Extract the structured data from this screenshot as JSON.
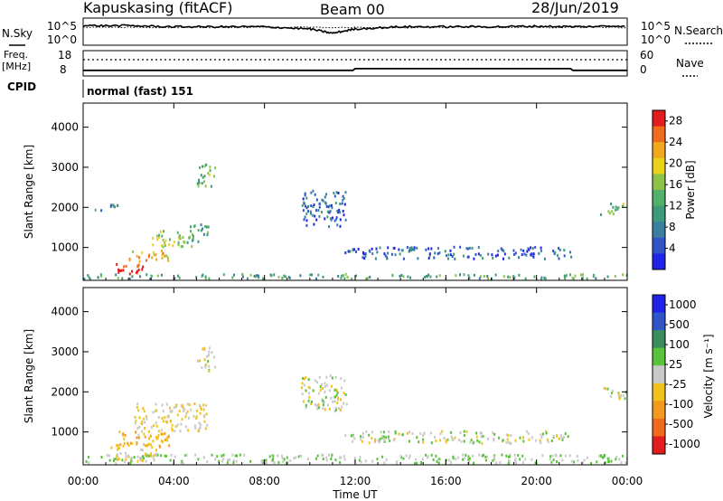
{
  "header": {
    "station": "Kapuskasing (fitACF)",
    "beam": "Beam 00",
    "date": "28/Jun/2019"
  },
  "strip_noise": {
    "left_label": "N.Sky",
    "left_ticks": [
      "10^5",
      "10^0"
    ],
    "right_ticks": [
      "10^5",
      "10^0"
    ],
    "right_label": "N.Search"
  },
  "strip_freq": {
    "left_label": "Freq.",
    "left_unit": "[MHz]",
    "left_ticks": [
      "18",
      "8"
    ],
    "right_ticks": [
      "60",
      "0"
    ],
    "right_label": "Nave"
  },
  "cpid": {
    "label": "CPID",
    "value": "normal (fast) 151"
  },
  "power_panel": {
    "ylabel": "Slant Range [km]",
    "yticks": [
      "1000",
      "2000",
      "3000",
      "4000"
    ],
    "colorbar_label": "Power [dB]",
    "colorbar_ticks": [
      "4",
      "8",
      "12",
      "16",
      "20",
      "24",
      "28"
    ],
    "colors": [
      "#1f24e6",
      "#2f55c8",
      "#3b7fa0",
      "#3e9a7a",
      "#52b06a",
      "#8ec34a",
      "#e8d21a",
      "#f2a81e",
      "#ef6c1c",
      "#e11d1d"
    ]
  },
  "velocity_panel": {
    "ylabel": "Slant Range [km]",
    "yticks": [
      "1000",
      "2000",
      "3000",
      "4000"
    ],
    "colorbar_label": "Velocity [m s⁻¹]",
    "colorbar_ticks": [
      "1000",
      "500",
      "100",
      "25",
      "-25",
      "-100",
      "-500",
      "-1000"
    ],
    "colors": [
      "#1f24e6",
      "#2f55c8",
      "#3a8d5e",
      "#58c23a",
      "#c9c9c9",
      "#f2c21b",
      "#f29a1e",
      "#ef6a1c",
      "#e11d1d"
    ]
  },
  "xaxis": {
    "ticks": [
      "00:00",
      "04:00",
      "08:00",
      "12:00",
      "16:00",
      "20:00",
      "00:00"
    ],
    "label": "Time UT"
  },
  "chart_data": [
    {
      "type": "heatmap",
      "title": "Power",
      "xlabel": "Time UT",
      "ylabel": "Slant Range [km]",
      "xlim": [
        0,
        24
      ],
      "ylim": [
        180,
        4600
      ],
      "zlabel": "Power [dB]",
      "zlim": [
        0,
        30
      ],
      "regions": [
        {
          "t": [
            1.2,
            2.6
          ],
          "r": [
            300,
            600
          ],
          "value": 28
        },
        {
          "t": [
            2.0,
            3.8
          ],
          "r": [
            600,
            900
          ],
          "value": 22
        },
        {
          "t": [
            2.8,
            4.8
          ],
          "r": [
            1000,
            1400
          ],
          "value": 16
        },
        {
          "t": [
            4.6,
            5.5
          ],
          "r": [
            1100,
            1600
          ],
          "value": 12
        },
        {
          "t": [
            0.5,
            1.5
          ],
          "r": [
            1900,
            2100
          ],
          "value": 8
        },
        {
          "t": [
            5.0,
            5.8
          ],
          "r": [
            2500,
            3100
          ],
          "value": 14
        },
        {
          "t": [
            0.0,
            24.0
          ],
          "r": [
            200,
            320
          ],
          "value": 12
        },
        {
          "t": [
            9.6,
            11.6
          ],
          "r": [
            1500,
            2400
          ],
          "value": 6
        },
        {
          "t": [
            11.5,
            21.5
          ],
          "r": [
            700,
            1000
          ],
          "value": 6
        },
        {
          "t": [
            22.8,
            24.0
          ],
          "r": [
            1800,
            2100
          ],
          "value": 14
        }
      ]
    },
    {
      "type": "heatmap",
      "title": "Velocity",
      "xlabel": "Time UT",
      "ylabel": "Slant Range [km]",
      "xlim": [
        0,
        24
      ],
      "ylim": [
        180,
        4600
      ],
      "zlabel": "Velocity [m s⁻¹]",
      "zlim": [
        -1000,
        1000
      ],
      "regions": [
        {
          "t": [
            1.2,
            3.2
          ],
          "r": [
            250,
            700
          ],
          "value": -100
        },
        {
          "t": [
            2.2,
            5.5
          ],
          "r": [
            1000,
            1700
          ],
          "value": -100
        },
        {
          "t": [
            1.5,
            4.0
          ],
          "r": [
            600,
            1000
          ],
          "value": -300
        },
        {
          "t": [
            0.0,
            24.0
          ],
          "r": [
            200,
            420
          ],
          "value": 100
        },
        {
          "t": [
            5.0,
            5.8
          ],
          "r": [
            2500,
            3100
          ],
          "value": 0
        },
        {
          "t": [
            9.6,
            11.6
          ],
          "r": [
            1500,
            2400
          ],
          "value": 0
        },
        {
          "t": [
            11.5,
            21.5
          ],
          "r": [
            700,
            1000
          ],
          "value": 0
        },
        {
          "t": [
            22.8,
            24.0
          ],
          "r": [
            1800,
            2100
          ],
          "value": 0
        }
      ]
    },
    {
      "type": "line",
      "title": "N.Sky",
      "xlim": [
        0,
        24
      ],
      "ylim": [
        0,
        5
      ],
      "ylabel": "N.Sky",
      "x": [
        0,
        2,
        4,
        6,
        8,
        10,
        11,
        12,
        14,
        16,
        18,
        20,
        22,
        24
      ],
      "values": [
        3.6,
        3.6,
        3.4,
        3.4,
        3.4,
        3.0,
        2.2,
        3.0,
        3.4,
        3.4,
        3.4,
        3.5,
        3.4,
        3.6
      ]
    },
    {
      "type": "line",
      "title": "Freq.",
      "xlim": [
        0,
        24
      ],
      "ylim": [
        8,
        18
      ],
      "ylabel": "Freq. [MHz]",
      "x": [
        0,
        11.9,
        12.0,
        21.5,
        21.6,
        24
      ],
      "values": [
        10.2,
        10.2,
        10.9,
        10.9,
        10.2,
        10.2
      ]
    }
  ]
}
